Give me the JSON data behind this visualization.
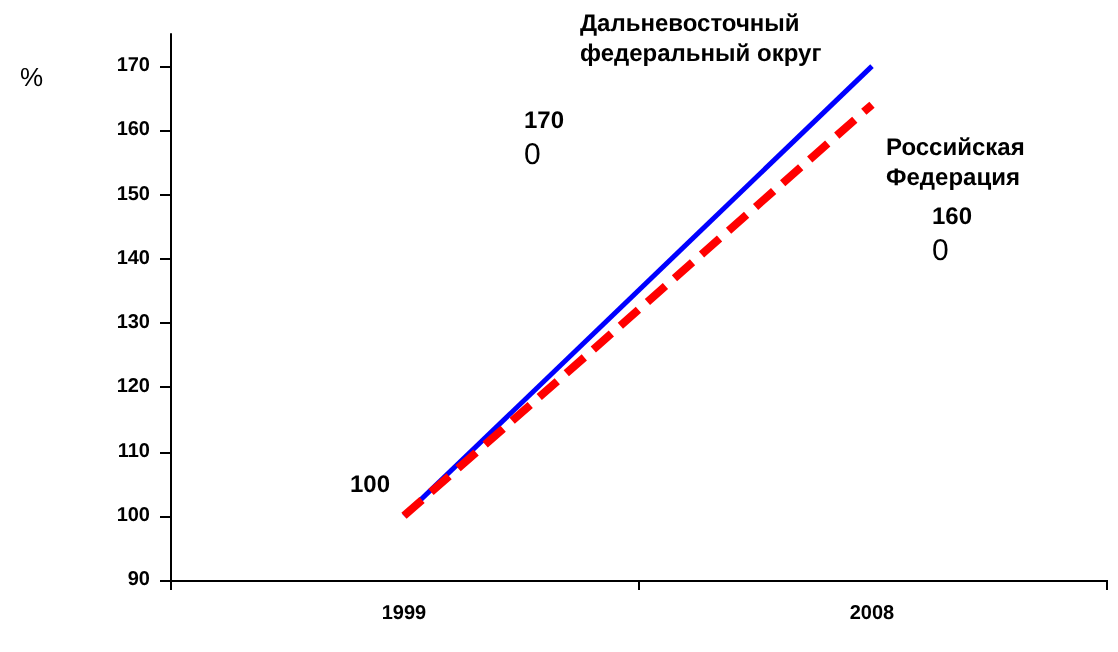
{
  "chart_data": {
    "type": "line",
    "ylabel": "%",
    "categories": [
      "1999",
      "2008"
    ],
    "series": [
      {
        "name": "Дальневосточный федеральный округ",
        "color": "#0000ff",
        "values": [
          100,
          170
        ],
        "line_style": "solid"
      },
      {
        "name": "Российская Федерация",
        "color": "#ff0000",
        "values": [
          100,
          164
        ],
        "line_style": "dashed"
      }
    ],
    "ylim": [
      90,
      175
    ],
    "yticks": [
      90,
      100,
      110,
      120,
      130,
      140,
      150,
      160,
      170
    ],
    "grid": false,
    "legend": false,
    "marker": "none",
    "annotations": [
      "100",
      "170",
      "0",
      "160",
      "0"
    ]
  }
}
